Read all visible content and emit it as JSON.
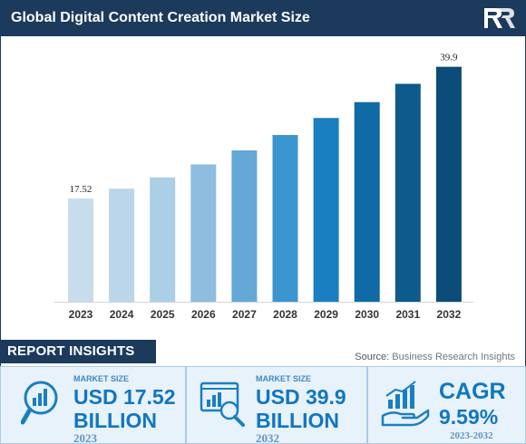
{
  "header": {
    "title": "Global Digital Content Creation Market Size"
  },
  "chart_data": {
    "type": "bar",
    "categories": [
      "2023",
      "2024",
      "2025",
      "2026",
      "2027",
      "2028",
      "2029",
      "2030",
      "2031",
      "2032"
    ],
    "values": [
      17.52,
      19.2,
      21.1,
      23.3,
      25.7,
      28.3,
      31.2,
      33.9,
      37.0,
      39.9
    ],
    "data_labels": {
      "0": "17.52",
      "9": "39.9"
    },
    "colors": [
      "#c8dced",
      "#bbd6ea",
      "#abcfe6",
      "#8fbde0",
      "#63a8d6",
      "#3b95cf",
      "#1a7fc0",
      "#0f6aa6",
      "#0d5a8c",
      "#0b4d78"
    ],
    "ylim": [
      0,
      42
    ],
    "grid": false,
    "title": "",
    "xlabel": "",
    "ylabel": ""
  },
  "insights": {
    "title": "REPORT INSIGHTS"
  },
  "source": {
    "label": "Source:",
    "name": "Business Research Insights"
  },
  "cards": [
    {
      "label": "MARKET SIZE",
      "line1": "USD 17.52",
      "line2": "BILLION",
      "year": "2023",
      "icon": "magnifier-chart-icon"
    },
    {
      "label": "MARKET SIZE",
      "line1": "USD 39.9",
      "line2": "BILLION",
      "year": "2032",
      "icon": "monitor-chart-icon"
    },
    {
      "label": "",
      "line1": "CAGR",
      "line2": "9.59%",
      "year": "2023-2032",
      "icon": "hand-growth-icon"
    }
  ]
}
